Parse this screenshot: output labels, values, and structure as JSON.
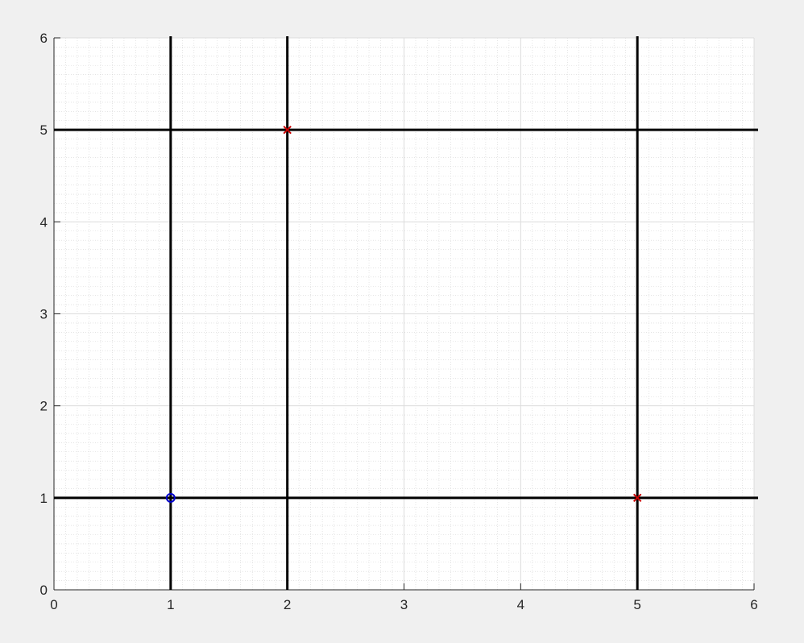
{
  "chart_data": {
    "type": "scatter",
    "title": "",
    "xlabel": "",
    "ylabel": "",
    "xlim": [
      0,
      6
    ],
    "ylim": [
      0,
      6
    ],
    "xticks": [
      0,
      1,
      2,
      3,
      4,
      5,
      6
    ],
    "yticks": [
      0,
      1,
      2,
      3,
      4,
      5,
      6
    ],
    "grid": true,
    "minor_grid": true,
    "vertical_lines": [
      1,
      2,
      5
    ],
    "horizontal_lines": [
      1,
      5
    ],
    "line_color": "#000000",
    "series": [
      {
        "marker": "o",
        "color": "#0000cc",
        "points": [
          {
            "x": 1,
            "y": 1
          }
        ]
      },
      {
        "marker": "x",
        "color": "#cc0000",
        "points": [
          {
            "x": 2,
            "y": 5
          },
          {
            "x": 5,
            "y": 1
          }
        ]
      }
    ]
  }
}
